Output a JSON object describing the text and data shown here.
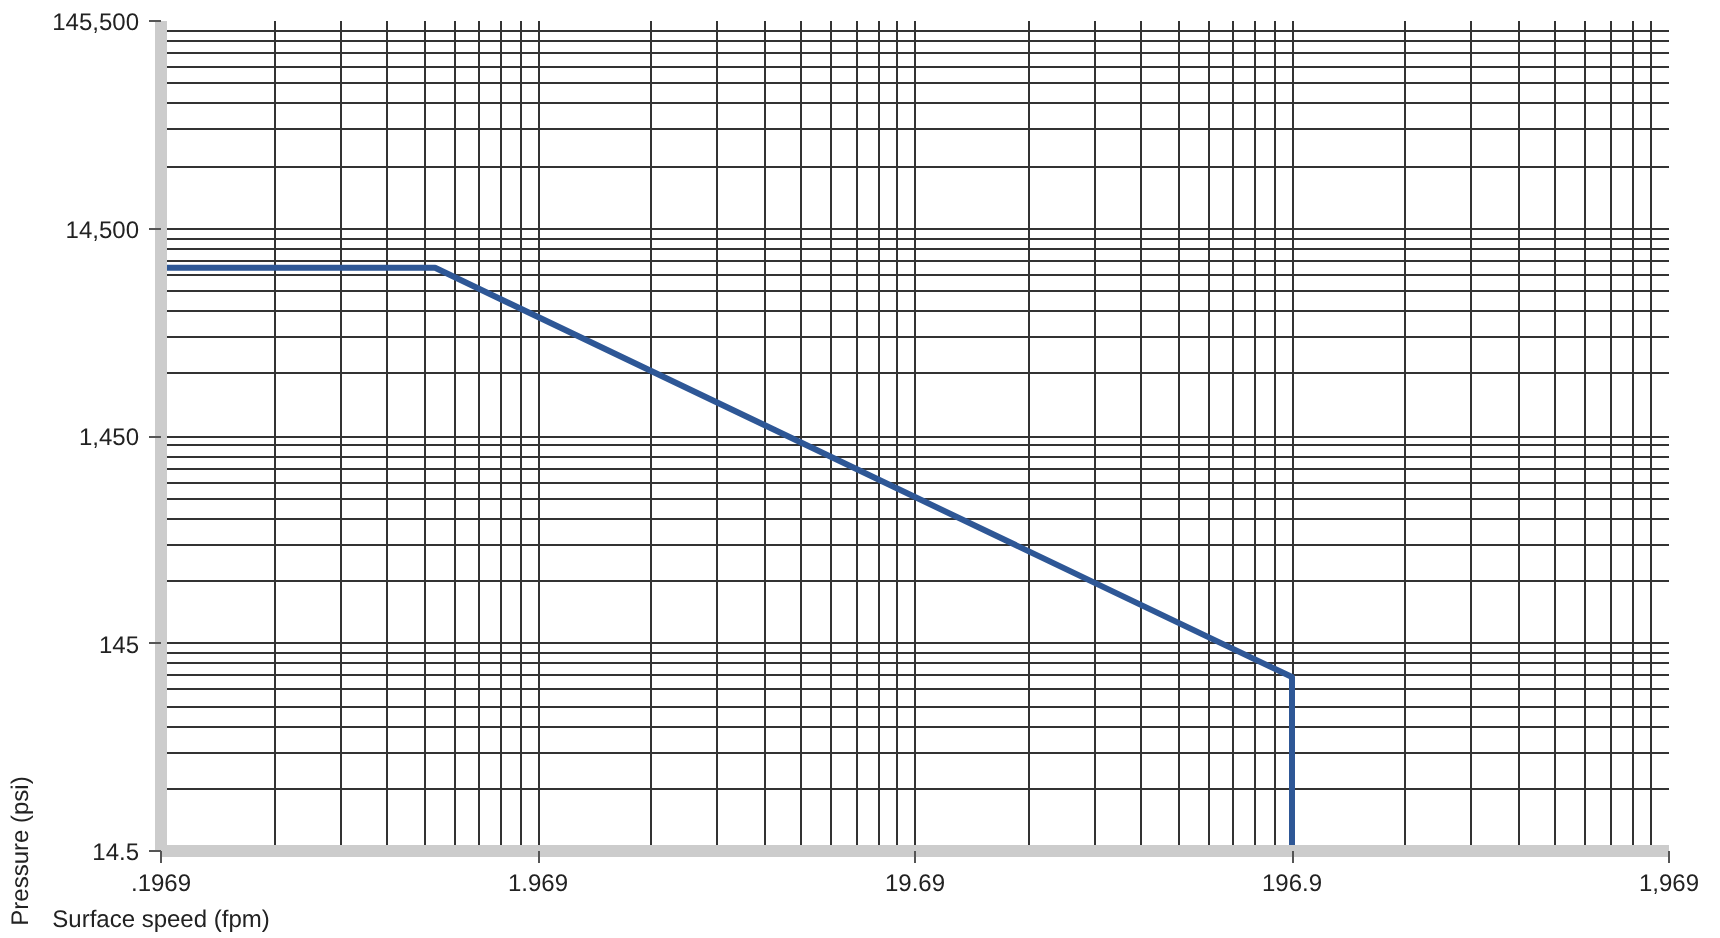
{
  "chart_data": {
    "type": "line",
    "xlabel": "Surface speed (fpm)",
    "ylabel": "Pressure (psi)",
    "log": "xy",
    "grid": true,
    "marker": "none",
    "line_style": "solid",
    "x": [
      0.1969,
      1.05,
      196.9,
      196.9
    ],
    "series": [
      {
        "color": "#2e5796",
        "values": [
          9400,
          9400,
          100,
          14.5
        ]
      }
    ],
    "xlim": [
      0.1969,
      1969
    ],
    "ylim": [
      14.5,
      145500
    ],
    "xticks": [
      {
        "value": 0.1969,
        "label": ".1969"
      },
      {
        "value": 1.969,
        "label": "1.969"
      },
      {
        "value": 19.69,
        "label": "19.69"
      },
      {
        "value": 196.9,
        "label": "196.9"
      },
      {
        "value": 1969,
        "label": "1,969"
      }
    ],
    "yticks": [
      14.5,
      145,
      {
        "value": 1450,
        "label": "1,450"
      },
      {
        "value": 14500,
        "label": "14,500"
      },
      {
        "value": 145500,
        "label": "145,500"
      }
    ]
  }
}
